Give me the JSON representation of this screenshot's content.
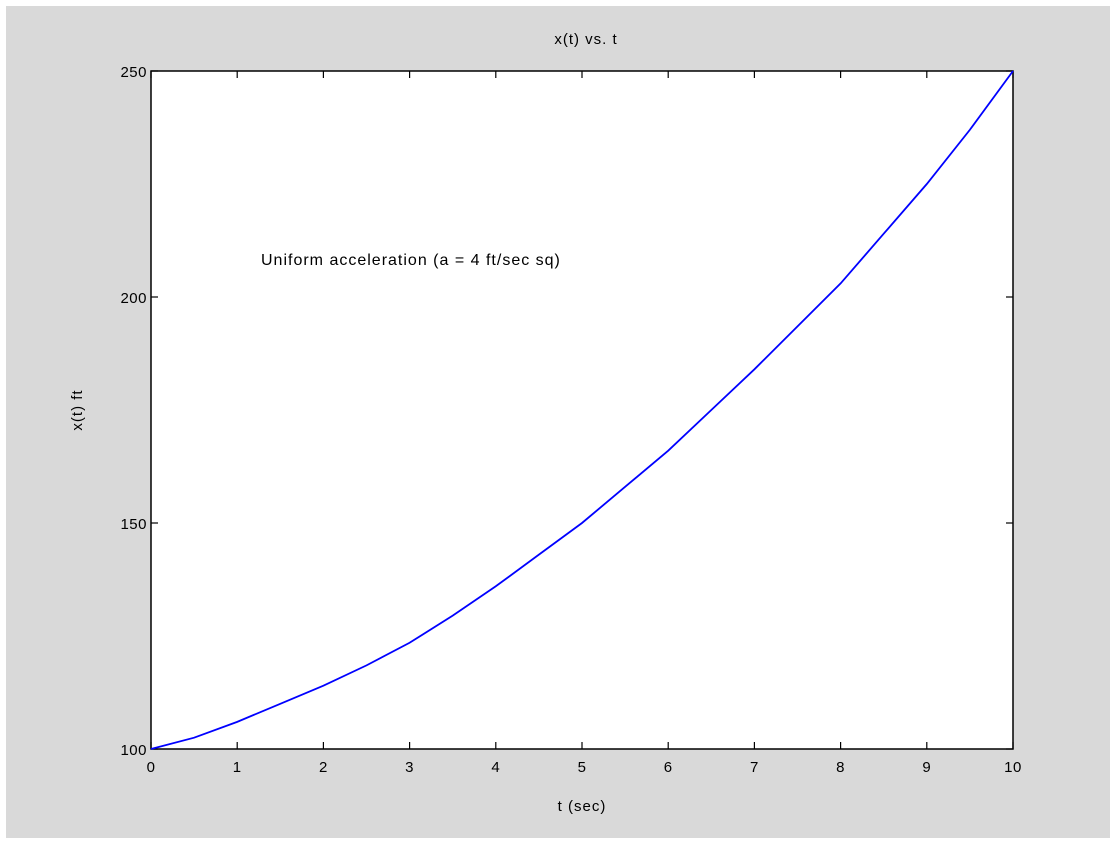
{
  "chart_data": {
    "type": "line",
    "title": "x(t) vs. t",
    "xlabel": "t (sec)",
    "ylabel": "x(t) ft",
    "xlim": [
      0,
      10
    ],
    "ylim": [
      100,
      250
    ],
    "xticks": [
      "0",
      "1",
      "2",
      "3",
      "4",
      "5",
      "6",
      "7",
      "8",
      "9",
      "10"
    ],
    "yticks": [
      "100",
      "150",
      "200",
      "250"
    ],
    "grid": false,
    "annotation": "Uniform acceleration (a = 4 ft/sec sq)",
    "series": [
      {
        "color": "#0000ff",
        "x": [
          0,
          0.5,
          1,
          1.5,
          2,
          2.5,
          3,
          3.5,
          4,
          4.5,
          5,
          5.5,
          6,
          6.5,
          7,
          7.5,
          8,
          8.5,
          9,
          9.5,
          10
        ],
        "y": [
          100,
          102.5,
          106,
          110,
          114,
          118.5,
          123.5,
          129.5,
          136,
          143,
          150,
          158,
          166,
          175,
          184,
          193.5,
          203,
          214,
          225,
          237,
          250
        ]
      }
    ]
  }
}
